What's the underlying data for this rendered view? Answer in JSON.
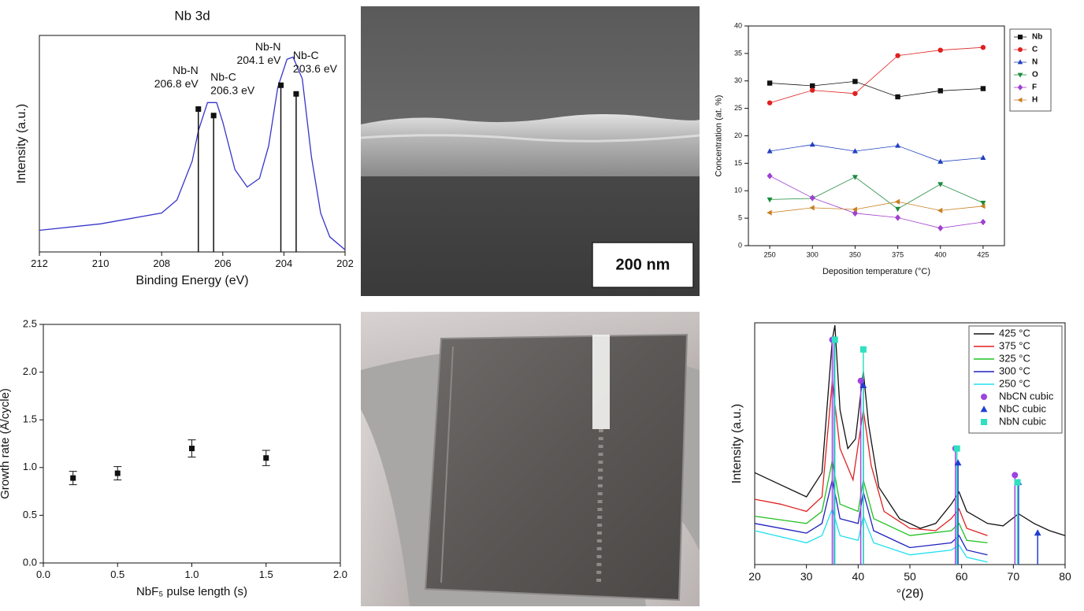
{
  "sem_image": {
    "scale_bar": "200 nm"
  },
  "chart_data": [
    {
      "type": "line",
      "title": "Nb 3d",
      "xlabel": "Binding Energy (eV)",
      "ylabel": "Intensity (a.u.)",
      "xlim": [
        212,
        202
      ],
      "xticks": [
        212,
        210,
        208,
        206,
        204,
        202
      ],
      "ylim": [
        0,
        100
      ],
      "x": [
        212,
        210,
        208,
        207.5,
        207,
        206.8,
        206.5,
        206.2,
        206,
        205.6,
        205.2,
        204.8,
        204.5,
        204.2,
        203.9,
        203.7,
        203.4,
        203.1,
        202.8,
        202.5,
        202
      ],
      "series": [
        {
          "color": "#3535c8",
          "values": [
            10,
            13,
            18,
            24,
            42,
            56,
            69,
            69,
            60,
            38,
            30,
            34,
            49,
            76,
            89,
            90,
            80,
            44,
            18,
            7,
            1
          ]
        }
      ],
      "annotations": [
        {
          "label": "Nb-N",
          "sublabel": "206.8 eV",
          "x": 206.8,
          "value": 66
        },
        {
          "label": "Nb-C",
          "sublabel": "206.3 eV",
          "x": 206.3,
          "value": 63
        },
        {
          "label": "Nb-N",
          "sublabel": "204.1 eV",
          "x": 204.1,
          "value": 77
        },
        {
          "label": "Nb-C",
          "sublabel": "203.6 eV",
          "x": 203.6,
          "value": 73
        }
      ]
    },
    {
      "type": "line",
      "xlabel": "Deposition temperature (°C)",
      "ylabel": "Concentration (at. %)",
      "categories": [
        "250",
        "300",
        "350",
        "375",
        "400",
        "425"
      ],
      "ylim": [
        0,
        40
      ],
      "yticks": [
        0,
        5,
        10,
        15,
        20,
        25,
        30,
        35,
        40
      ],
      "legend": "outside right",
      "series": [
        {
          "name": "Nb",
          "color": "#111111",
          "marker": "square",
          "values": [
            29.6,
            29.1,
            29.9,
            27.1,
            28.2,
            28.6
          ]
        },
        {
          "name": "C",
          "color": "#e02020",
          "marker": "circle",
          "values": [
            26.0,
            28.3,
            27.7,
            34.6,
            35.6,
            36.1
          ]
        },
        {
          "name": "N",
          "color": "#2040c0",
          "marker": "triangle-up",
          "values": [
            17.2,
            18.4,
            17.2,
            18.2,
            15.3,
            16.0
          ]
        },
        {
          "name": "O",
          "color": "#1a8a3a",
          "marker": "triangle-down",
          "values": [
            8.4,
            8.6,
            12.5,
            6.7,
            11.2,
            7.8
          ]
        },
        {
          "name": "F",
          "color": "#a040d0",
          "marker": "diamond",
          "values": [
            12.7,
            8.7,
            5.9,
            5.1,
            3.2,
            4.3
          ]
        },
        {
          "name": "H",
          "color": "#c88020",
          "marker": "triangle-left",
          "values": [
            6.0,
            6.9,
            6.6,
            8.0,
            6.4,
            7.2
          ]
        }
      ]
    },
    {
      "type": "scatter",
      "xlabel": "NbF₅ pulse length (s)",
      "ylabel": "Growth rate (Å/cycle)",
      "xlim": [
        0,
        2
      ],
      "xticks": [
        {
          "value": 0,
          "label": "0.0"
        },
        0.5,
        {
          "value": 1,
          "label": "1.0"
        },
        1.5,
        {
          "value": 2,
          "label": "2.0"
        }
      ],
      "ylim": [
        0,
        2.5
      ],
      "yticks": [
        {
          "value": 0,
          "label": "0.0"
        },
        0.5,
        {
          "value": 1,
          "label": "1.0"
        },
        1.5,
        {
          "value": 2,
          "label": "2.0"
        },
        2.5
      ],
      "color": "#111111",
      "marker": "square",
      "x": [
        0.2,
        0.5,
        1.0,
        1.5
      ],
      "values": [
        0.89,
        0.94,
        1.2,
        1.1
      ],
      "errors": [
        0.07,
        0.07,
        0.09,
        0.08
      ]
    },
    {
      "type": "line",
      "xlabel": "°(2θ)",
      "ylabel": "Intensity (a.u.)",
      "xlim": [
        20,
        80
      ],
      "xticks": [
        20,
        30,
        40,
        50,
        60,
        70,
        80
      ],
      "ylim": [
        0,
        100
      ],
      "legend": "upper right",
      "series": [
        {
          "name": "425 °C",
          "color": "#111111",
          "x": [
            20,
            25,
            30,
            33,
            35,
            35.5,
            36.5,
            38,
            39.5,
            41,
            42,
            44,
            48,
            52,
            55,
            58,
            59.5,
            61,
            65,
            68,
            71,
            74,
            77,
            80
          ],
          "values": [
            38,
            33,
            28,
            38,
            93,
            99,
            64,
            48,
            52,
            80,
            58,
            32,
            19,
            15,
            17,
            25,
            30,
            22,
            17,
            16,
            21,
            17,
            14,
            12
          ]
        },
        {
          "name": "375 °C",
          "color": "#e02020",
          "x": [
            20,
            25,
            30,
            33,
            35,
            36.5,
            39,
            41,
            42.5,
            45,
            50,
            55,
            58,
            59.5,
            61,
            65
          ],
          "values": [
            27,
            25,
            22,
            28,
            76,
            48,
            35,
            64,
            41,
            22,
            15,
            14,
            19,
            23,
            15,
            12
          ]
        },
        {
          "name": "325 °C",
          "color": "#20c020",
          "x": [
            20,
            30,
            33,
            35,
            36.5,
            40,
            41,
            43,
            50,
            58,
            59.5,
            61,
            65
          ],
          "values": [
            20,
            17,
            22,
            43,
            25,
            22,
            35,
            19,
            12,
            14,
            17,
            10,
            9
          ]
        },
        {
          "name": "300 °C",
          "color": "#2020c0",
          "x": [
            20,
            30,
            33,
            35,
            36.5,
            40,
            41,
            43,
            50,
            58,
            59.5,
            61,
            65
          ],
          "values": [
            17,
            13,
            17,
            35,
            19,
            17,
            30,
            14,
            7,
            9,
            12,
            6,
            4
          ]
        },
        {
          "name": "250 °C",
          "color": "#20dff0",
          "x": [
            20,
            30,
            33,
            35,
            36.5,
            40,
            41,
            43,
            50,
            58,
            59.5,
            61,
            65
          ],
          "values": [
            14,
            9,
            12,
            23,
            12,
            10,
            20,
            9,
            4,
            6,
            8,
            3,
            1
          ]
        }
      ],
      "references": [
        {
          "name": "NbCN cubic",
          "color": "#9b45e0",
          "marker": "circle",
          "x": [
            35.0,
            40.5,
            58.8,
            70.3
          ],
          "values": [
            93,
            76,
            48,
            37
          ]
        },
        {
          "name": "NbC cubic",
          "color": "#1f3fd0",
          "marker": "triangle-up",
          "x": [
            35.4,
            41.0,
            59.3,
            71.0,
            74.7
          ],
          "values": [
            93,
            74,
            42,
            34,
            13
          ]
        },
        {
          "name": "NbN cubic",
          "color": "#30e0c0",
          "marker": "square",
          "x": [
            35.5,
            41.0,
            59.1,
            70.8
          ],
          "values": [
            93,
            89,
            48,
            34
          ]
        }
      ]
    }
  ]
}
